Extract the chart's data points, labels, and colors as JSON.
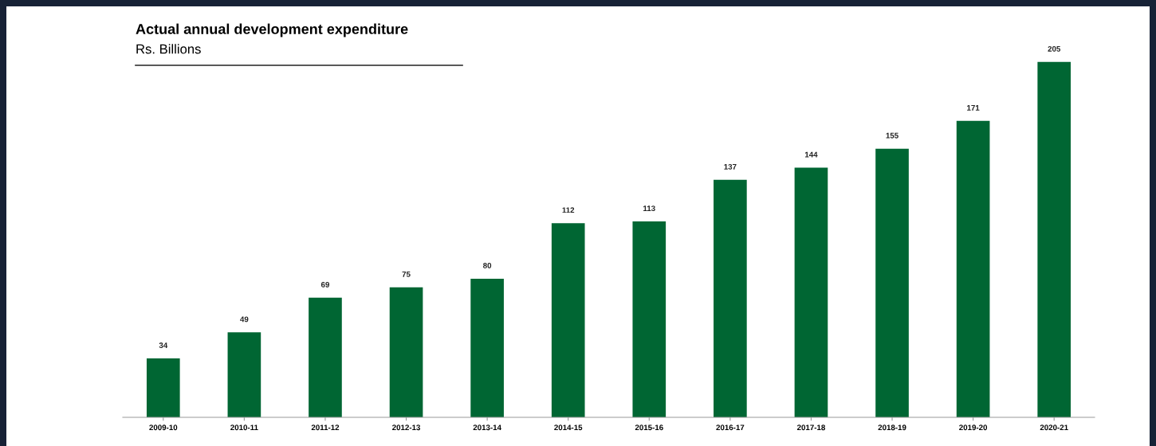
{
  "chart_data": {
    "type": "bar",
    "title": "Actual annual development expenditure",
    "subtitle": "Rs. Billions",
    "categories": [
      "2009-10",
      "2010-11",
      "2011-12",
      "2012-13",
      "2013-14",
      "2014-15",
      "2015-16",
      "2016-17",
      "2017-18",
      "2018-19",
      "2019-20",
      "2020-21"
    ],
    "values": [
      34,
      49,
      69,
      75,
      80,
      112,
      113,
      137,
      144,
      155,
      171,
      205
    ],
    "color": "#006633",
    "data_labels": true,
    "grid": false,
    "legend": false,
    "tick_labels": "x"
  }
}
